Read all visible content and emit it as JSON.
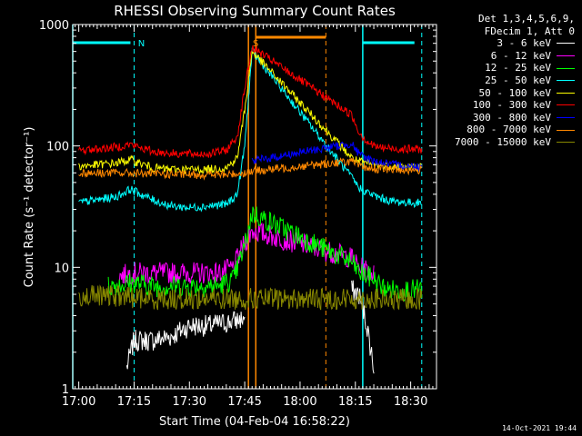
{
  "chart_data": {
    "type": "line",
    "title": "RHESSI Observing Summary Count Rates",
    "xlabel": "Start Time (04-Feb-04 16:58:22)",
    "ylabel": "Count Rate (s⁻¹ detector⁻¹)",
    "yscale": "log",
    "ylim": [
      1,
      1000
    ],
    "xlim": [
      "16:58:22",
      "18:37:00"
    ],
    "x_ticks": [
      "17:00",
      "17:15",
      "17:30",
      "17:45",
      "18:00",
      "18:15",
      "18:30"
    ],
    "y_ticks": [
      "1",
      "10",
      "100",
      "1000"
    ],
    "legend_header": [
      "Det 1,3,4,5,6,9,",
      "FDecim 1, Att 0"
    ],
    "legend_position": "outside-right",
    "series": [
      {
        "name": "3 - 6 keV",
        "color": "#ffffff",
        "x": [
          "16:58:22",
          "17:10",
          "17:13",
          "17:15",
          "17:20",
          "17:25",
          "17:30",
          "17:35",
          "17:40",
          "17:45",
          "17:47",
          "18:14",
          "18:16",
          "18:18",
          "18:20",
          "18:22"
        ],
        "values": [
          null,
          null,
          1.5,
          2.5,
          2.5,
          2.7,
          3.3,
          3.3,
          3.5,
          3.8,
          null,
          6.5,
          6.0,
          3.5,
          1.5,
          null
        ]
      },
      {
        "name": "6 - 12 keV",
        "color": "#ff00ff",
        "x": [
          "17:11",
          "17:15",
          "17:20",
          "17:30",
          "17:38",
          "17:42",
          "17:45",
          "17:47",
          "18:14",
          "18:16",
          "18:18",
          "18:20",
          "18:22",
          "18:24"
        ],
        "values": [
          8.5,
          9.0,
          9.0,
          9.0,
          9.0,
          10,
          16,
          20,
          12,
          10,
          9.5,
          9.0,
          null,
          null
        ]
      },
      {
        "name": "12 - 25 keV",
        "color": "#00ff00",
        "x": [
          "17:08",
          "17:15",
          "17:20",
          "17:30",
          "17:38",
          "17:42",
          "17:45",
          "17:47",
          "18:14",
          "18:16",
          "18:18",
          "18:20",
          "18:22",
          "18:24",
          "18:30",
          "18:33"
        ],
        "values": [
          7.0,
          7.5,
          7.0,
          7.0,
          7.0,
          8.0,
          15,
          28,
          11,
          9.0,
          8.5,
          8.0,
          7.0,
          6.5,
          6.5,
          6.5
        ]
      },
      {
        "name": "25 - 50 keV",
        "color": "#00ffff",
        "x": [
          "17:00",
          "17:05",
          "17:10",
          "17:14",
          "17:20",
          "17:25",
          "17:30",
          "17:35",
          "17:40",
          "17:43",
          "17:45",
          "17:47",
          "18:14",
          "18:16",
          "18:18",
          "18:20",
          "18:22",
          "18:25",
          "18:30",
          "18:33"
        ],
        "values": [
          34,
          36,
          38,
          44,
          36,
          32,
          31,
          32,
          33,
          40,
          100,
          600,
          55,
          45,
          42,
          39,
          37,
          35,
          34,
          34
        ]
      },
      {
        "name": "50 - 100 keV",
        "color": "#ffff00",
        "x": [
          "17:00",
          "17:05",
          "17:10",
          "17:14",
          "17:20",
          "17:25",
          "17:30",
          "17:35",
          "17:40",
          "17:43",
          "17:45",
          "17:47",
          "18:14",
          "18:16",
          "18:18",
          "18:20",
          "18:22",
          "18:25",
          "18:30",
          "18:33"
        ],
        "values": [
          68,
          70,
          72,
          77,
          66,
          64,
          64,
          64,
          66,
          80,
          200,
          600,
          80,
          74,
          72,
          70,
          69,
          68,
          67,
          67
        ]
      },
      {
        "name": "100 - 300 keV",
        "color": "#ff0000",
        "x": [
          "17:00",
          "17:05",
          "17:10",
          "17:14",
          "17:20",
          "17:25",
          "17:30",
          "17:35",
          "17:40",
          "17:43",
          "17:45",
          "17:47",
          "18:14",
          "18:16",
          "18:18",
          "18:20",
          "18:22",
          "18:25",
          "18:30",
          "18:33"
        ],
        "values": [
          92,
          94,
          98,
          103,
          90,
          87,
          86,
          86,
          92,
          120,
          300,
          650,
          180,
          130,
          110,
          100,
          97,
          95,
          94,
          94
        ]
      },
      {
        "name": "300 - 800 keV",
        "color": "#0000ff",
        "x": [
          "16:58:22",
          "17:45",
          "17:47",
          "18:14",
          "18:16",
          "18:20",
          "18:25",
          "18:30",
          "18:33"
        ],
        "values": [
          null,
          null,
          75,
          105,
          85,
          75,
          70,
          68,
          68
        ]
      },
      {
        "name": "800 - 7000 keV",
        "color": "#ff8800",
        "x": [
          "17:00",
          "17:10",
          "17:20",
          "17:30",
          "17:40",
          "17:45",
          "17:47",
          "18:14",
          "18:16",
          "18:20",
          "18:25",
          "18:30",
          "18:33"
        ],
        "values": [
          60,
          60,
          59,
          58,
          58,
          60,
          62,
          75,
          68,
          65,
          64,
          63,
          63
        ]
      },
      {
        "name": "7000 - 15000 keV",
        "color": "#888800",
        "x": [
          "17:00",
          "17:10",
          "17:20",
          "17:30",
          "17:40",
          "17:45",
          "17:47",
          "18:14",
          "18:16",
          "18:20",
          "18:25",
          "18:30",
          "18:33"
        ],
        "values": [
          5.8,
          5.8,
          5.5,
          5.5,
          5.5,
          5.5,
          5.5,
          5.5,
          5.5,
          5.5,
          5.3,
          5.5,
          5.5
        ]
      }
    ],
    "annotations": [
      {
        "text": "N",
        "time": "17:15",
        "color": "#00ffff"
      },
      {
        "text": "S",
        "time": "17:46",
        "color": "#ff8800"
      }
    ],
    "night_intervals": [
      [
        "16:58:22",
        "17:15"
      ],
      [
        "18:17",
        "18:32"
      ]
    ],
    "saa_intervals": [
      [
        "17:47",
        "18:07"
      ]
    ],
    "vertical_lines": [
      {
        "time": "16:58:22",
        "color": "#00ffff",
        "style": "solid"
      },
      {
        "time": "17:15",
        "color": "#00ffff",
        "style": "dashed"
      },
      {
        "time": "17:46",
        "color": "#ff8800",
        "style": "solid"
      },
      {
        "time": "17:48",
        "color": "#ff8800",
        "style": "solid"
      },
      {
        "time": "18:07",
        "color": "#ff8800",
        "style": "dashed"
      },
      {
        "time": "18:17",
        "color": "#00ffff",
        "style": "solid"
      },
      {
        "time": "18:33",
        "color": "#00ffff",
        "style": "dashed"
      }
    ]
  },
  "footer": {
    "timestamp": "14-Oct-2021 19:44"
  }
}
